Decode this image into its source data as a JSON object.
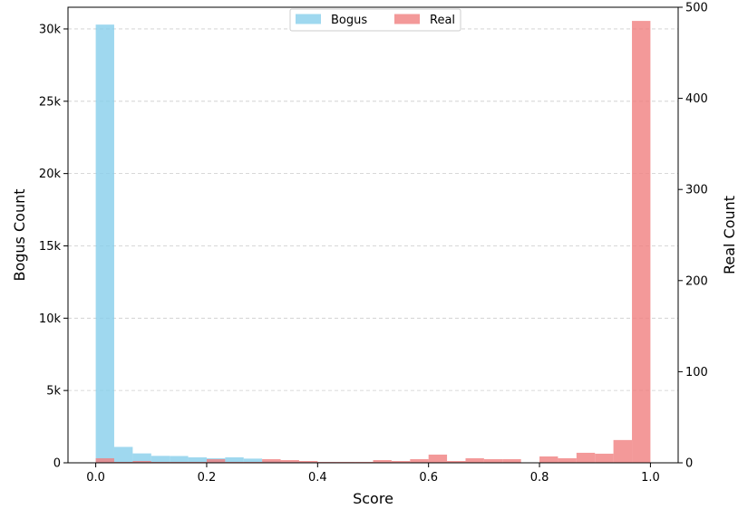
{
  "chart_data": {
    "type": "bar",
    "xlabel": "Score",
    "ylabel_left": "Bogus Count",
    "ylabel_right": "Real Count",
    "xlim": [
      -0.05,
      1.05
    ],
    "ylim_left": [
      0,
      31500
    ],
    "ylim_right": [
      0,
      500
    ],
    "x_ticks": [
      0.0,
      0.2,
      0.4,
      0.6,
      0.8,
      1.0
    ],
    "x_tick_labels": [
      "0.0",
      "0.2",
      "0.4",
      "0.6",
      "0.8",
      "1.0"
    ],
    "y_left_ticks": [
      0,
      5000,
      10000,
      15000,
      20000,
      25000,
      30000
    ],
    "y_left_tick_labels": [
      "0",
      "5k",
      "10k",
      "15k",
      "20k",
      "25k",
      "30k"
    ],
    "y_right_ticks": [
      0,
      100,
      200,
      300,
      400,
      500
    ],
    "y_right_tick_labels": [
      "0",
      "100",
      "200",
      "300",
      "400",
      "500"
    ],
    "grid": "horizontal dashed",
    "legend_placement": "top-center",
    "bin_edges": [
      0.0,
      0.0333,
      0.0667,
      0.1,
      0.1333,
      0.1667,
      0.2,
      0.2333,
      0.2667,
      0.3,
      0.3333,
      0.3667,
      0.4,
      0.4333,
      0.4667,
      0.5,
      0.5333,
      0.5667,
      0.6,
      0.6333,
      0.6667,
      0.7,
      0.7333,
      0.7667,
      0.8,
      0.8333,
      0.8667,
      0.9,
      0.9333,
      0.9667,
      1.0
    ],
    "series": [
      {
        "name": "Bogus",
        "axis": "left",
        "color": "#87ceeb",
        "values": [
          30300,
          1100,
          650,
          480,
          470,
          380,
          310,
          380,
          290,
          120,
          80,
          60,
          50,
          40,
          30,
          25,
          20,
          20,
          15,
          15,
          10,
          10,
          10,
          10,
          5,
          5,
          5,
          5,
          5,
          5
        ]
      },
      {
        "name": "Real",
        "axis": "right",
        "color": "#f08080",
        "values": [
          5,
          1,
          2,
          1,
          1,
          1,
          4,
          1,
          1,
          4,
          3,
          2,
          1,
          1,
          1,
          3,
          2,
          4,
          9,
          2,
          5,
          4,
          4,
          0,
          7,
          5,
          11,
          10,
          25,
          485
        ]
      }
    ]
  }
}
